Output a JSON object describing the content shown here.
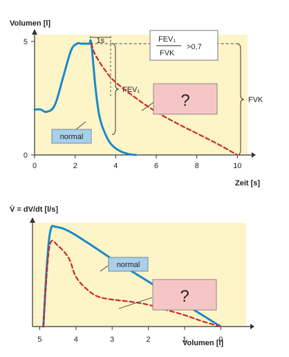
{
  "colors": {
    "panel_bg": "#fdf4c8",
    "normal_curve": "#1a88c9",
    "dashed_curve": "#c8282d",
    "label_box": "#a9cfea",
    "question_box": "#f6c6c6"
  },
  "chart_data": [
    {
      "type": "line",
      "title": "",
      "ylabel": "Volumen [l]",
      "xlabel": "Zeit [s]",
      "xlim": [
        0,
        10.5
      ],
      "ylim": [
        0,
        5.3
      ],
      "xticks": [
        "0",
        "2",
        "4",
        "6",
        "8",
        "10"
      ],
      "yticks": [
        "0",
        "5"
      ],
      "series": [
        {
          "name": "normal",
          "style": "solid",
          "x": [
            0,
            0.3,
            0.6,
            1.0,
            1.4,
            1.8,
            2.1,
            2.3,
            2.5,
            2.7,
            2.8,
            3.0,
            3.2,
            3.5,
            3.8,
            4.2,
            4.6,
            5.0
          ],
          "y": [
            2.0,
            2.0,
            1.9,
            2.2,
            3.4,
            4.6,
            4.9,
            4.9,
            4.9,
            4.9,
            4.9,
            3.0,
            1.7,
            0.9,
            0.45,
            0.18,
            0.05,
            0.0
          ]
        },
        {
          "name": "?",
          "style": "dashed",
          "x": [
            2.8,
            3.0,
            3.5,
            4.0,
            5.0,
            6.0,
            7.0,
            8.0,
            9.0,
            9.6,
            10.0
          ],
          "y": [
            4.9,
            4.4,
            3.7,
            3.2,
            2.5,
            1.9,
            1.4,
            0.95,
            0.5,
            0.2,
            0.0
          ]
        }
      ],
      "annotations": {
        "one_second": "1s",
        "fev1": "FEV₁",
        "fvk": "FVK",
        "ratio_numerator": "FEV₁",
        "ratio_denominator": "FVK",
        "ratio_value": ">0,7",
        "normal_label": "normal",
        "question_label": "?"
      }
    },
    {
      "type": "line",
      "title": "",
      "ylabel": "V̇ = dV/dt [l/s]",
      "xlabel": "Volumen [l]",
      "xlim": [
        5.2,
        -0.7
      ],
      "ylim": [
        0,
        10
      ],
      "xticks": [
        "5",
        "4",
        "3",
        "2",
        "1",
        "0"
      ],
      "series": [
        {
          "name": "normal",
          "style": "solid",
          "x": [
            4.9,
            4.8,
            4.7,
            4.55,
            4.2,
            3.6,
            3.0,
            2.4,
            1.8,
            1.2,
            0.6,
            0.0
          ],
          "y": [
            0.0,
            6.0,
            9.3,
            9.6,
            9.2,
            7.9,
            6.5,
            5.2,
            3.9,
            2.6,
            1.3,
            0.0
          ]
        },
        {
          "name": "?",
          "style": "dashed",
          "x": [
            4.9,
            4.8,
            4.7,
            4.5,
            4.2,
            4.0,
            3.7,
            3.4,
            3.0,
            2.5,
            2.0,
            1.5,
            1.0,
            0.5,
            0.0
          ],
          "y": [
            0.0,
            5.3,
            8.1,
            7.8,
            6.6,
            4.8,
            3.6,
            2.9,
            2.6,
            2.4,
            2.1,
            1.6,
            1.1,
            0.5,
            0.0
          ]
        }
      ],
      "annotations": {
        "normal_label": "normal",
        "question_label": "?"
      }
    }
  ]
}
